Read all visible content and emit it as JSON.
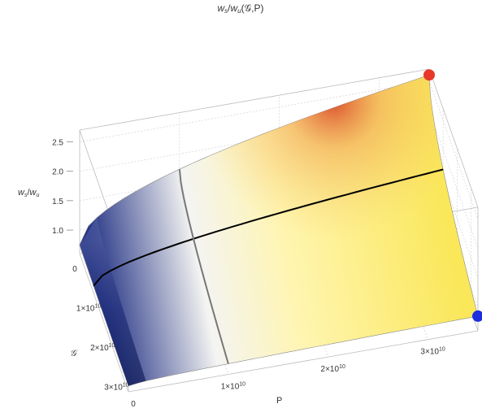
{
  "chart_data": {
    "type": "surface3d",
    "title": "w_s/w_u(𝒢,P)",
    "title_parts": {
      "w1": "w",
      "s1": "s",
      "slash": "/",
      "w2": "w",
      "s2": "u",
      "args": "(𝒢,P)"
    },
    "xlabel": "P",
    "ylabel": "𝒢",
    "zlabel_parts": {
      "w1": "w",
      "s1": "s",
      "slash": "/",
      "w2": "w",
      "s2": "u"
    },
    "x_ticks": [
      {
        "value": 0,
        "label": "0"
      },
      {
        "value": 10000000000.0,
        "label": "1×10",
        "exp": "10"
      },
      {
        "value": 20000000000.0,
        "label": "2×10",
        "exp": "10"
      },
      {
        "value": 30000000000.0,
        "label": "3×10",
        "exp": "10"
      }
    ],
    "y_ticks": [
      {
        "value": 0,
        "label": "0"
      },
      {
        "value": 10000000000.0,
        "label": "1×10",
        "exp": "10"
      },
      {
        "value": 20000000000.0,
        "label": "2×10",
        "exp": "10"
      },
      {
        "value": 30000000000.0,
        "label": "3×10",
        "exp": "10"
      }
    ],
    "z_ticks": [
      {
        "value": 1.0,
        "label": "1.0"
      },
      {
        "value": 1.5,
        "label": "1.5"
      },
      {
        "value": 2.0,
        "label": "2.0"
      },
      {
        "value": 2.5,
        "label": "2.5"
      }
    ],
    "x_range": [
      0,
      35000000000.0
    ],
    "y_range": [
      0,
      35000000000.0
    ],
    "z_range": [
      0.6,
      2.7
    ],
    "surface_corners": {
      "p0_g0": 0.75,
      "pmax_g0": 2.6,
      "p0_gmax": 0.7,
      "pmax_gmax": 0.85
    },
    "curves": [
      {
        "color": "#000000",
        "along": "P",
        "fixed_g": 10000000000.0
      },
      {
        "color": "#777777",
        "along": "G",
        "fixed_p": 10000000000.0
      }
    ],
    "points": [
      {
        "color": "#e8382a",
        "p": 35000000000.0,
        "g": 0,
        "z": 2.6
      },
      {
        "color": "#1c2ee0",
        "p": 35000000000.0,
        "g": 35000000000.0,
        "z": 0.85
      }
    ],
    "box": true,
    "grid": true
  }
}
